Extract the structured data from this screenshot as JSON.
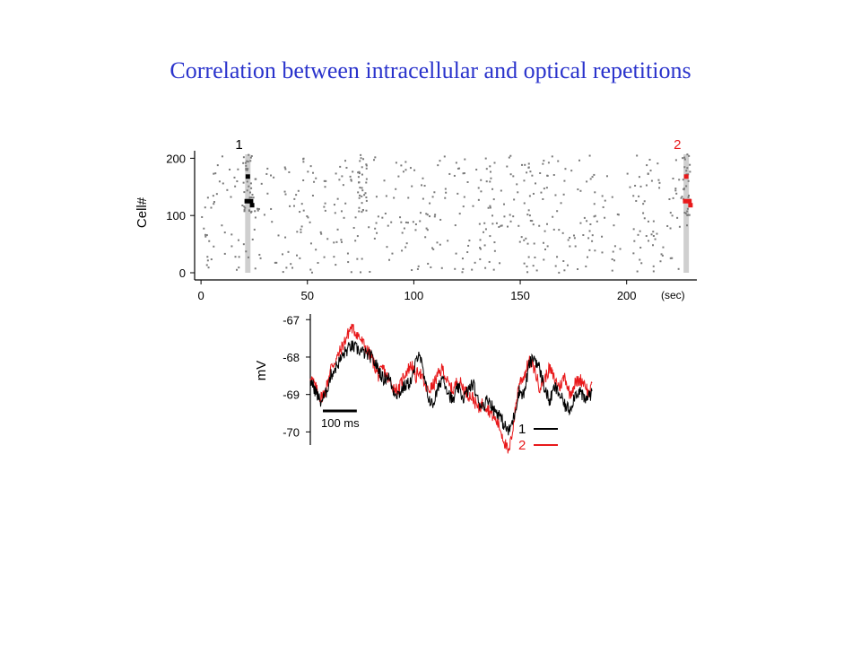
{
  "title": "Correlation between intracellular and optical repetitions",
  "colors": {
    "title": "#2a33cc",
    "spike": "#7a7a7a",
    "highlight_band": "#cfcfcf",
    "rep1": "#000000",
    "rep2": "#e8191b"
  },
  "chart_data": [
    {
      "type": "scatter",
      "ylabel": "Cell#",
      "xlim": [
        -3,
        233
      ],
      "ylim": [
        0,
        210
      ],
      "xticks": [
        "0",
        "50",
        "100",
        "150",
        "200"
      ],
      "xtick_values": [
        0,
        50,
        100,
        150,
        200
      ],
      "yticks": [
        "0",
        "100",
        "200"
      ],
      "ytick_values": [
        0,
        100,
        200
      ],
      "x_unit_label": "(sec)",
      "markers": [
        {
          "label": "1",
          "x": 22,
          "color": "#000000"
        },
        {
          "label": "2",
          "x": 228,
          "color": "#e8191b"
        }
      ],
      "highlight_cells_1": [
        {
          "x": 22,
          "y": 168
        },
        {
          "x": 21.5,
          "y": 125
        },
        {
          "x": 23.5,
          "y": 125
        },
        {
          "x": 24,
          "y": 118
        }
      ],
      "highlight_cells_2": [
        {
          "x": 228,
          "y": 168
        },
        {
          "x": 227.5,
          "y": 125
        },
        {
          "x": 229.5,
          "y": 125
        },
        {
          "x": 230,
          "y": 118
        }
      ]
    },
    {
      "type": "line",
      "ylabel": "mV",
      "ylim": [
        -70.35,
        -66.85
      ],
      "yticks": [
        "-67",
        "-68",
        "-69",
        "-70"
      ],
      "ytick_values": [
        -67,
        -68,
        -69,
        -70
      ],
      "x_duration_ms": 830,
      "scalebar": {
        "label": "100 ms",
        "ms": 100
      },
      "series": [
        {
          "name": "1",
          "color": "#000000",
          "x": [
            0,
            15,
            30,
            45,
            60,
            80,
            100,
            120,
            140,
            160,
            180,
            200,
            215,
            230,
            245,
            260,
            275,
            290,
            300,
            310,
            320,
            330,
            345,
            360,
            375,
            390,
            405,
            420,
            435,
            450,
            465,
            480,
            495,
            510,
            525,
            540,
            555,
            570,
            585,
            600,
            615,
            630,
            645,
            660,
            675,
            690,
            705,
            720,
            735,
            750,
            765,
            780,
            795,
            810,
            820,
            830
          ],
          "values": [
            -68.6,
            -68.9,
            -69.2,
            -69.0,
            -68.5,
            -68.2,
            -67.9,
            -67.7,
            -67.8,
            -67.9,
            -68.0,
            -68.3,
            -68.6,
            -68.5,
            -68.9,
            -69.0,
            -68.8,
            -68.7,
            -68.6,
            -68.2,
            -67.8,
            -68.3,
            -69.0,
            -69.3,
            -68.9,
            -68.5,
            -68.9,
            -69.2,
            -68.8,
            -69.1,
            -68.9,
            -68.7,
            -69.2,
            -69.3,
            -69.1,
            -69.4,
            -69.5,
            -69.8,
            -70.0,
            -69.6,
            -68.9,
            -69.0,
            -68.2,
            -68.0,
            -68.3,
            -68.8,
            -69.2,
            -68.8,
            -69.0,
            -69.3,
            -69.4,
            -69.0,
            -68.9,
            -69.2,
            -69.0,
            -69.0
          ]
        },
        {
          "name": "2",
          "color": "#e8191b",
          "x": [
            0,
            15,
            30,
            45,
            60,
            80,
            100,
            120,
            140,
            160,
            180,
            200,
            215,
            230,
            245,
            260,
            275,
            290,
            300,
            310,
            320,
            330,
            345,
            360,
            375,
            390,
            405,
            420,
            435,
            450,
            465,
            480,
            495,
            510,
            525,
            540,
            555,
            570,
            585,
            600,
            615,
            630,
            645,
            660,
            675,
            690,
            705,
            720,
            735,
            750,
            765,
            780,
            795,
            810,
            820,
            830
          ],
          "values": [
            -68.5,
            -68.8,
            -69.1,
            -68.9,
            -68.3,
            -68.0,
            -67.6,
            -67.2,
            -67.4,
            -67.7,
            -68.0,
            -68.5,
            -68.3,
            -68.6,
            -68.8,
            -68.9,
            -68.5,
            -68.3,
            -68.2,
            -68.6,
            -68.3,
            -68.6,
            -68.9,
            -68.8,
            -68.5,
            -68.3,
            -68.7,
            -68.9,
            -68.6,
            -68.8,
            -69.0,
            -69.1,
            -69.4,
            -69.2,
            -69.4,
            -69.6,
            -69.8,
            -70.2,
            -70.6,
            -69.7,
            -68.7,
            -68.5,
            -68.1,
            -68.3,
            -68.8,
            -68.6,
            -68.3,
            -68.6,
            -68.8,
            -68.5,
            -69.0,
            -68.7,
            -68.6,
            -68.7,
            -69.0,
            -68.8
          ]
        }
      ]
    }
  ]
}
